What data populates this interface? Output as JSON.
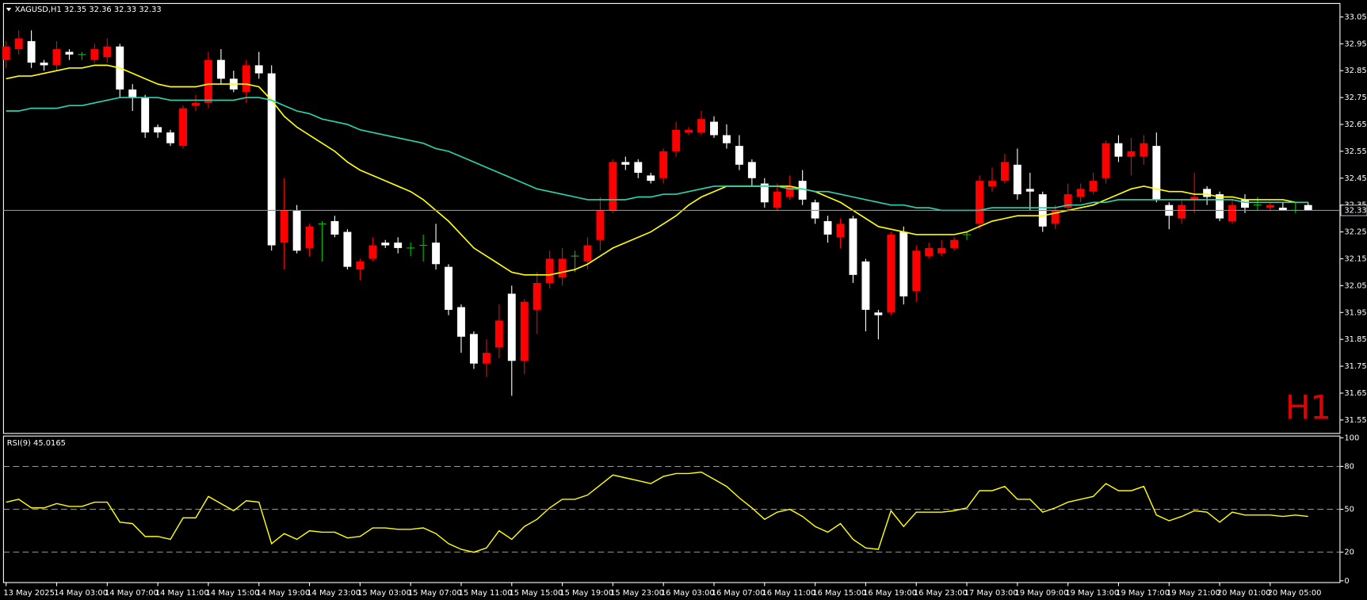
{
  "chart_data": {
    "type": "candlestick",
    "title": "XAGUSD,H1",
    "timeframe_watermark": "H1",
    "categories": [
      "13 May 2025",
      null,
      null,
      null,
      "14 May 03:00",
      null,
      null,
      null,
      "14 May 07:00",
      null,
      null,
      null,
      "14 May 11:00",
      null,
      null,
      null,
      "14 May 15:00",
      null,
      null,
      null,
      "14 May 19:00",
      null,
      null,
      null,
      "14 May 23:00",
      null,
      null,
      null,
      "15 May 03:00",
      null,
      null,
      null,
      "15 May 07:00",
      null,
      null,
      null,
      "15 May 11:00",
      null,
      null,
      null,
      "15 May 15:00",
      null,
      null,
      null,
      "15 May 19:00",
      null,
      null,
      null,
      "15 May 23:00",
      null,
      null,
      null,
      "16 May 03:00",
      null,
      null,
      null,
      "16 May 07:00",
      null,
      null,
      null,
      "16 May 11:00",
      null,
      null,
      null,
      "16 May 15:00",
      null,
      null,
      null,
      "16 May 19:00",
      null,
      null,
      null,
      "16 May 23:00",
      null,
      null,
      null,
      "17 May 03:00",
      null,
      null,
      null,
      "19 May 09:00",
      null,
      null,
      null,
      "19 May 13:00",
      null,
      null,
      null,
      "19 May 17:00",
      null,
      null,
      null,
      "19 May 21:00",
      null,
      null,
      null,
      "20 May 01:00",
      null,
      null,
      null,
      "20 May 05:00",
      null,
      null,
      null
    ],
    "open": [
      32.89,
      32.93,
      32.96,
      32.88,
      32.87,
      32.92,
      32.91,
      32.89,
      32.9,
      32.94,
      32.78,
      32.75,
      32.64,
      32.62,
      32.57,
      32.72,
      32.73,
      32.89,
      32.82,
      32.77,
      32.87,
      32.84,
      32.21,
      32.33,
      32.19,
      32.28,
      32.29,
      32.25,
      32.11,
      32.15,
      32.21,
      32.21,
      32.19,
      32.2,
      32.21,
      32.12,
      31.97,
      31.87,
      31.76,
      31.82,
      32.02,
      31.77,
      31.96,
      32.06,
      32.08,
      32.16,
      32.14,
      32.22,
      32.33,
      32.51,
      32.51,
      32.46,
      32.45,
      32.55,
      32.62,
      32.62,
      32.66,
      32.61,
      32.57,
      32.51,
      32.43,
      32.34,
      32.38,
      32.44,
      32.36,
      32.29,
      32.23,
      32.3,
      32.14,
      31.95,
      31.95,
      32.25,
      32.03,
      32.16,
      32.17,
      32.19,
      32.24,
      32.28,
      32.42,
      32.44,
      32.5,
      32.41,
      32.39,
      32.28,
      32.34,
      32.38,
      32.4,
      32.45,
      32.58,
      32.53,
      32.53,
      32.57,
      32.35,
      32.3,
      32.37,
      32.41,
      32.39,
      32.29,
      32.37,
      32.35,
      32.34,
      32.34,
      32.33,
      32.35
    ],
    "high": [
      32.96,
      33.0,
      33.0,
      32.89,
      32.96,
      32.93,
      32.92,
      32.95,
      32.97,
      32.95,
      32.8,
      32.76,
      32.65,
      32.63,
      32.72,
      32.76,
      32.92,
      32.93,
      32.85,
      32.89,
      32.92,
      32.87,
      32.45,
      32.35,
      32.28,
      32.29,
      32.31,
      32.26,
      32.15,
      32.23,
      32.22,
      32.23,
      32.21,
      32.24,
      32.28,
      32.13,
      31.98,
      31.88,
      31.85,
      31.98,
      32.05,
      32.0,
      32.1,
      32.18,
      32.19,
      32.18,
      32.23,
      32.38,
      32.52,
      32.53,
      32.52,
      32.47,
      32.56,
      32.66,
      32.64,
      32.7,
      32.68,
      32.65,
      32.61,
      32.52,
      32.45,
      32.43,
      32.46,
      32.48,
      32.37,
      32.31,
      32.3,
      32.31,
      32.15,
      31.96,
      32.25,
      32.27,
      32.2,
      32.21,
      32.22,
      32.23,
      32.25,
      32.46,
      32.49,
      32.54,
      32.56,
      32.47,
      32.4,
      32.35,
      32.43,
      32.43,
      32.47,
      32.59,
      32.61,
      32.6,
      32.61,
      32.62,
      32.36,
      32.37,
      32.47,
      32.42,
      32.4,
      32.37,
      32.39,
      32.38,
      32.36,
      32.36,
      32.36,
      32.36
    ],
    "low": [
      32.86,
      32.91,
      32.86,
      32.85,
      32.85,
      32.89,
      32.89,
      32.88,
      32.88,
      32.75,
      32.7,
      32.6,
      32.6,
      32.57,
      32.56,
      32.7,
      32.71,
      32.8,
      32.77,
      32.73,
      32.82,
      32.18,
      32.11,
      32.17,
      32.16,
      32.14,
      32.23,
      32.11,
      32.07,
      32.14,
      32.19,
      32.17,
      32.16,
      32.14,
      32.11,
      31.94,
      31.8,
      31.74,
      31.71,
      31.78,
      31.64,
      31.72,
      31.87,
      32.04,
      32.05,
      32.1,
      32.11,
      32.18,
      32.32,
      32.48,
      32.45,
      32.43,
      32.43,
      32.53,
      32.61,
      32.61,
      32.6,
      32.56,
      32.48,
      32.42,
      32.34,
      32.33,
      32.37,
      32.35,
      32.28,
      32.21,
      32.19,
      32.06,
      31.88,
      31.85,
      31.94,
      31.98,
      31.99,
      32.15,
      32.16,
      32.18,
      32.22,
      32.26,
      32.4,
      32.43,
      32.37,
      32.33,
      32.25,
      32.26,
      32.33,
      32.36,
      32.39,
      32.43,
      32.51,
      32.46,
      32.5,
      32.36,
      32.26,
      32.28,
      32.32,
      32.35,
      32.29,
      32.28,
      32.32,
      32.33,
      32.33,
      32.33,
      32.32,
      32.33
    ],
    "close": [
      32.94,
      32.97,
      32.88,
      32.87,
      32.93,
      32.91,
      32.91,
      32.93,
      32.94,
      32.78,
      32.75,
      32.62,
      32.62,
      32.58,
      32.71,
      32.73,
      32.89,
      32.82,
      32.78,
      32.87,
      32.84,
      32.2,
      32.33,
      32.18,
      32.27,
      32.28,
      32.24,
      32.12,
      32.14,
      32.2,
      32.2,
      32.19,
      32.19,
      32.2,
      32.13,
      31.96,
      31.86,
      31.76,
      31.8,
      31.92,
      31.77,
      31.99,
      32.06,
      32.15,
      32.15,
      32.16,
      32.2,
      32.33,
      32.51,
      32.5,
      32.47,
      32.44,
      32.55,
      32.63,
      32.63,
      32.67,
      32.61,
      32.58,
      32.5,
      32.45,
      32.36,
      32.4,
      32.42,
      32.37,
      32.3,
      32.24,
      32.28,
      32.09,
      31.96,
      31.94,
      32.24,
      32.01,
      32.18,
      32.19,
      32.19,
      32.22,
      32.24,
      32.44,
      32.44,
      32.51,
      32.39,
      32.4,
      32.27,
      32.33,
      32.39,
      32.41,
      32.44,
      32.58,
      32.53,
      32.55,
      32.58,
      32.37,
      32.31,
      32.35,
      32.38,
      32.38,
      32.3,
      32.35,
      32.34,
      32.35,
      32.35,
      32.33,
      32.33,
      32.33
    ],
    "up_color": "#ff0000",
    "down_color": "#ffffff",
    "doji_color": "#00c000",
    "overlays": [
      {
        "color": "#ffff00",
        "values": [
          32.82,
          32.83,
          32.83,
          32.84,
          32.85,
          32.86,
          32.86,
          32.87,
          32.87,
          32.86,
          32.84,
          32.82,
          32.8,
          32.79,
          32.79,
          32.79,
          32.8,
          32.8,
          32.8,
          32.8,
          32.79,
          32.74,
          32.68,
          32.64,
          32.61,
          32.58,
          32.55,
          32.51,
          32.48,
          32.46,
          32.44,
          32.42,
          32.4,
          32.37,
          32.33,
          32.29,
          32.24,
          32.19,
          32.16,
          32.13,
          32.1,
          32.09,
          32.09,
          32.09,
          32.1,
          32.11,
          32.13,
          32.16,
          32.19,
          32.21,
          32.23,
          32.25,
          32.28,
          32.31,
          32.35,
          32.38,
          32.4,
          32.42,
          32.42,
          32.42,
          32.42,
          32.42,
          32.42,
          32.41,
          32.4,
          32.38,
          32.36,
          32.33,
          32.3,
          32.27,
          32.26,
          32.25,
          32.24,
          32.24,
          32.24,
          32.24,
          32.25,
          32.27,
          32.29,
          32.3,
          32.31,
          32.31,
          32.31,
          32.32,
          32.33,
          32.34,
          32.35,
          32.37,
          32.39,
          32.41,
          32.42,
          32.41,
          32.4,
          32.4,
          32.39,
          32.39,
          32.38,
          32.38,
          32.37,
          32.37,
          32.37,
          32.37,
          32.36,
          32.36
        ]
      },
      {
        "color": "#2ad4b0",
        "values": [
          32.7,
          32.7,
          32.71,
          32.71,
          32.71,
          32.72,
          32.72,
          32.73,
          32.74,
          32.75,
          32.75,
          32.75,
          32.75,
          32.74,
          32.74,
          32.74,
          32.74,
          32.74,
          32.74,
          32.75,
          32.75,
          32.74,
          32.72,
          32.7,
          32.69,
          32.67,
          32.66,
          32.65,
          32.63,
          32.62,
          32.61,
          32.6,
          32.59,
          32.58,
          32.56,
          32.55,
          32.53,
          32.51,
          32.49,
          32.47,
          32.45,
          32.43,
          32.41,
          32.4,
          32.39,
          32.38,
          32.37,
          32.37,
          32.37,
          32.37,
          32.38,
          32.38,
          32.39,
          32.39,
          32.4,
          32.41,
          32.42,
          32.42,
          32.42,
          32.42,
          32.42,
          32.42,
          32.41,
          32.41,
          32.4,
          32.4,
          32.39,
          32.38,
          32.37,
          32.36,
          32.35,
          32.35,
          32.34,
          32.34,
          32.33,
          32.33,
          32.33,
          32.33,
          32.34,
          32.34,
          32.34,
          32.34,
          32.34,
          32.34,
          32.35,
          32.35,
          32.36,
          32.36,
          32.37,
          32.37,
          32.37,
          32.37,
          32.37,
          32.37,
          32.37,
          32.37,
          32.37,
          32.37,
          32.36,
          32.36,
          32.36,
          32.36,
          32.36,
          32.36
        ]
      }
    ],
    "price_line_color": "#7f8fa0",
    "ylim": [
      31.5,
      33.1
    ],
    "yticks": [
      31.55,
      31.65,
      31.75,
      31.85,
      31.95,
      32.05,
      32.15,
      32.25,
      32.35,
      32.45,
      32.55,
      32.65,
      32.75,
      32.85,
      32.95,
      33.05
    ],
    "indicator": {
      "title": "RSI(9)",
      "color": "#ffff00",
      "values": [
        55,
        57,
        51,
        51,
        54,
        52,
        52,
        55,
        55,
        41,
        40,
        31,
        31,
        29,
        44,
        44,
        59,
        54,
        49,
        56,
        55,
        26,
        33,
        29,
        35,
        34,
        34,
        30,
        31,
        37,
        37,
        36,
        36,
        37,
        33,
        26,
        22,
        20,
        23,
        35,
        29,
        38,
        43,
        51,
        57,
        57,
        60,
        67,
        74,
        72,
        70,
        68,
        73,
        75,
        75,
        76,
        71,
        66,
        58,
        51,
        43,
        48,
        50,
        45,
        38,
        34,
        40,
        29,
        23,
        22,
        49,
        38,
        48,
        48,
        48,
        49,
        51,
        63,
        63,
        66,
        57,
        57,
        48,
        51,
        55,
        57,
        59,
        68,
        63,
        63,
        66,
        46,
        42,
        45,
        49,
        48,
        41,
        48,
        46,
        46,
        46,
        45,
        46,
        45.0165
      ],
      "ylim": [
        0,
        100
      ],
      "yticks": [
        0,
        20,
        50,
        80,
        100
      ],
      "levels": [
        20,
        50,
        80
      ]
    }
  }
}
